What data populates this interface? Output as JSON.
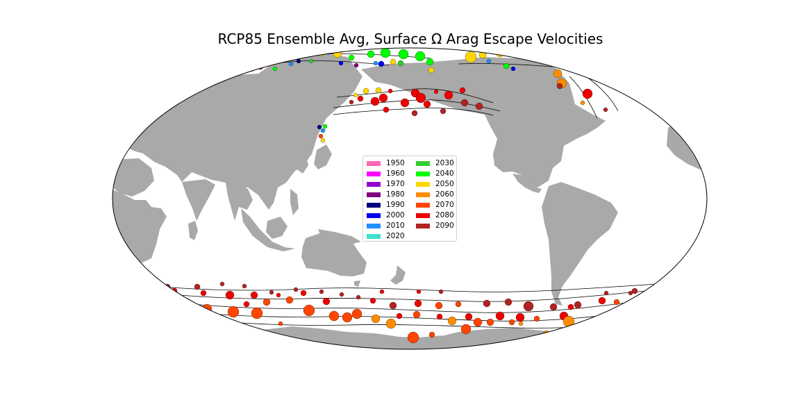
{
  "title": "RCP85 Ensemble Avg, Surface Ω Arag Escape Velocities",
  "colors": {
    "land": "#a9a9a9",
    "ocean": "#ffffff",
    "contour": "#000000"
  },
  "legend": {
    "entries": [
      {
        "label": "1950",
        "color": "#ff69b4"
      },
      {
        "label": "1960",
        "color": "#ff00ff"
      },
      {
        "label": "1970",
        "color": "#9400d3"
      },
      {
        "label": "1980",
        "color": "#800080"
      },
      {
        "label": "1990",
        "color": "#000080"
      },
      {
        "label": "2000",
        "color": "#0000ee"
      },
      {
        "label": "2010",
        "color": "#1e90ff"
      },
      {
        "label": "2020",
        "color": "#40e0d0"
      },
      {
        "label": "2030",
        "color": "#32cd32"
      },
      {
        "label": "2040",
        "color": "#00ff00"
      },
      {
        "label": "2050",
        "color": "#ffd700"
      },
      {
        "label": "2060",
        "color": "#ff8c00"
      },
      {
        "label": "2070",
        "color": "#ff4500"
      },
      {
        "label": "2080",
        "color": "#ee0000"
      },
      {
        "label": "2090",
        "color": "#b22222"
      }
    ]
  },
  "map_features": {
    "projection": "robinson",
    "center": "pacific",
    "marker_encoding": "color = decade of escape; size = escape velocity"
  }
}
